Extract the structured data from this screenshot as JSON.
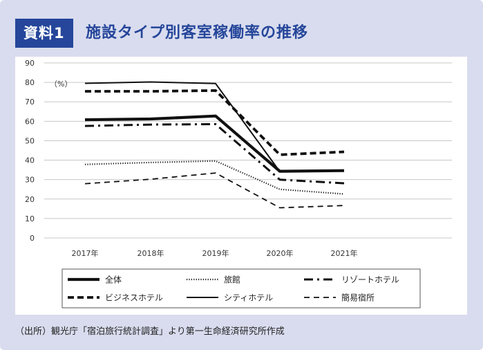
{
  "header": {
    "badge": "資料1",
    "title": "施設タイプ別客室稼働率の推移"
  },
  "source": "（出所）観光庁「宿泊旅行統計調査」より第一生命経済研究所作成",
  "colors": {
    "frame": "#d9dcee",
    "accent": "#25469a",
    "series": "#111111",
    "grid": "#c8c8c8"
  },
  "chart_data": {
    "type": "line",
    "title": "",
    "xlabel": "",
    "ylabel": "",
    "unit": "（%）",
    "categories": [
      "2017年",
      "2018年",
      "2019年",
      "2020年",
      "2021年"
    ],
    "ylim": [
      0,
      90
    ],
    "yticks": [
      0,
      10,
      20,
      30,
      40,
      50,
      60,
      70,
      80,
      90
    ],
    "grid": true,
    "legend": "bottom",
    "series": [
      {
        "name": "全体",
        "values": [
          60.8,
          61.2,
          62.7,
          34.3,
          34.6
        ],
        "style": "thick-solid"
      },
      {
        "name": "旅館",
        "values": [
          37.8,
          38.8,
          39.6,
          25.0,
          22.6
        ],
        "style": "dotted"
      },
      {
        "name": "リゾートホテル",
        "values": [
          57.6,
          58.3,
          58.5,
          30.0,
          28.1
        ],
        "style": "dash-dot"
      },
      {
        "name": "ビジネスホテル",
        "values": [
          75.4,
          75.4,
          75.8,
          42.8,
          44.3
        ],
        "style": "thick-dashed"
      },
      {
        "name": "シティホテル",
        "values": [
          79.5,
          80.2,
          79.4,
          34.1,
          34.4
        ],
        "style": "thin-solid"
      },
      {
        "name": "簡易宿所",
        "values": [
          27.9,
          30.2,
          33.4,
          15.5,
          16.7
        ],
        "style": "thin-dashed"
      }
    ]
  }
}
